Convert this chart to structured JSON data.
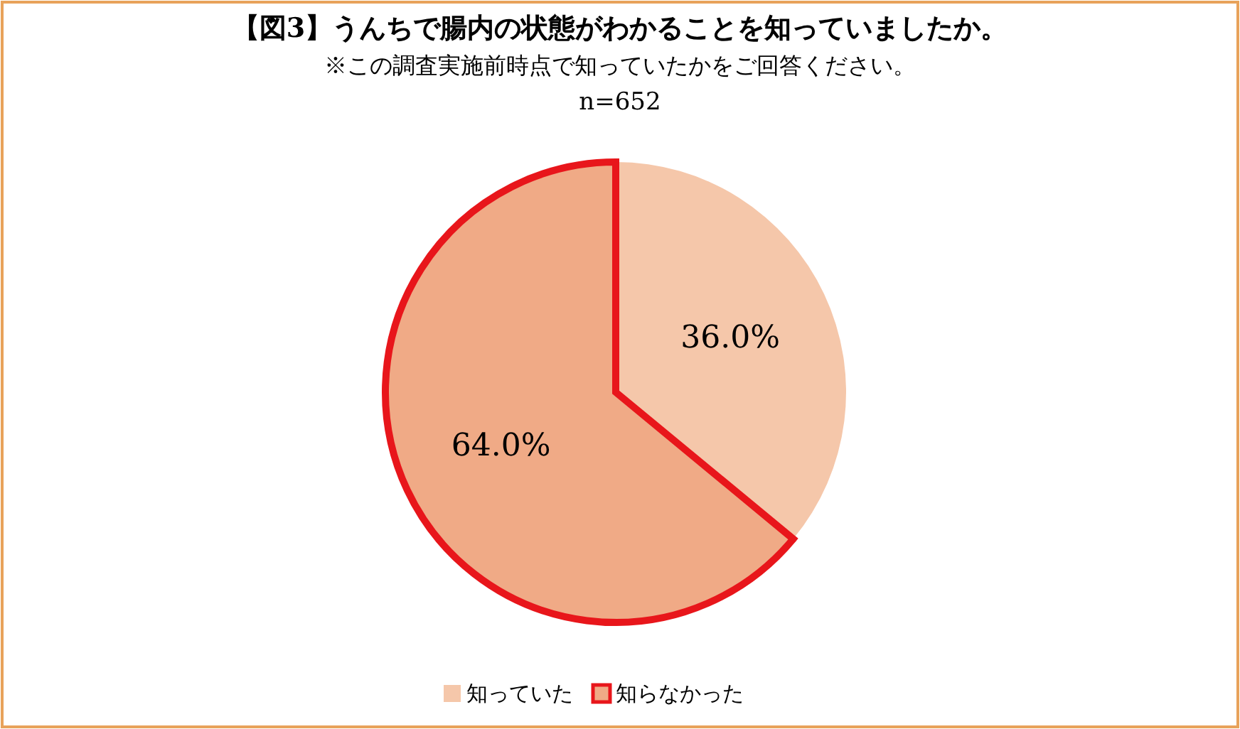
{
  "chart_data": {
    "type": "pie",
    "title": "【図3】うんちで腸内の状態がわかることを知っていましたか。",
    "subtitle": "※この調査実施前時点で知っていたかをご回答ください。",
    "annotations": [
      "n=652"
    ],
    "categories": [
      "知っていた",
      "知らなかった"
    ],
    "values": [
      36.0,
      64.0
    ],
    "colors": [
      "#f5c7aa",
      "#f0aa86"
    ],
    "value_labels": [
      "36.0%",
      "64.0%"
    ],
    "legend": "bottom"
  }
}
